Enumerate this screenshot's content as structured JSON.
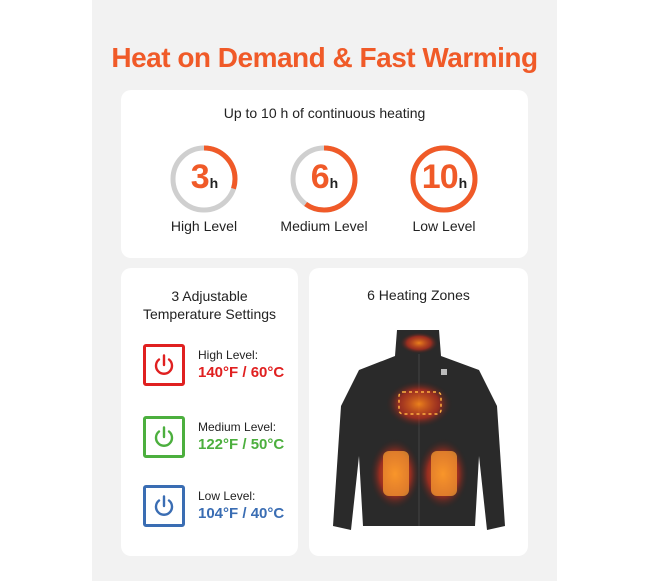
{
  "title": "Heat on Demand & Fast Warming",
  "duration": {
    "subtitle": "Up to 10 h of continuous heating",
    "accent": "#f05a28",
    "items": [
      {
        "value": "3",
        "unit": "h",
        "label": "High Level",
        "fraction": 0.3
      },
      {
        "value": "6",
        "unit": "h",
        "label": "Medium Level",
        "fraction": 0.6
      },
      {
        "value": "10",
        "unit": "h",
        "label": "Low Level",
        "fraction": 1.0
      }
    ]
  },
  "settings": {
    "title_line1": "3 Adjustable",
    "title_line2": "Temperature Settings",
    "levels": [
      {
        "name": "High Level:",
        "temp": "140°F / 60°C",
        "color": "#e02020",
        "icon": "power-icon"
      },
      {
        "name": "Medium Level:",
        "temp": "122°F / 50°C",
        "color": "#4caf3e",
        "icon": "power-icon"
      },
      {
        "name": "Low Level:",
        "temp": "104°F / 40°C",
        "color": "#3a6db3",
        "icon": "power-icon"
      }
    ]
  },
  "zones": {
    "title": "6 Heating Zones"
  }
}
